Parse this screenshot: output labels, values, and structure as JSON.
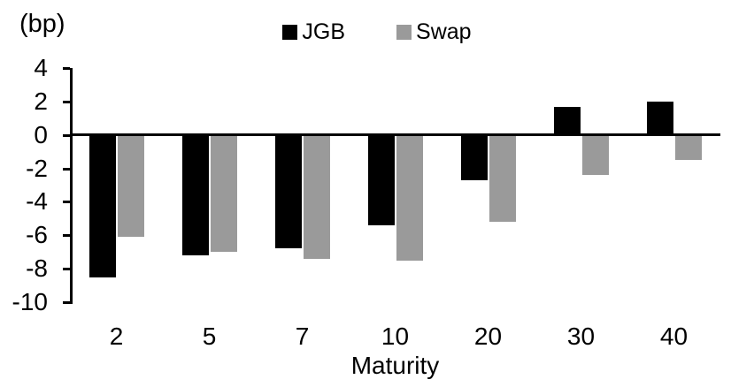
{
  "chart_data": {
    "type": "bar",
    "unit_label": "(bp)",
    "xlabel": "Maturity",
    "categories": [
      "2",
      "5",
      "7",
      "10",
      "20",
      "30",
      "40"
    ],
    "series": [
      {
        "name": "JGB",
        "color": "#000000",
        "values": [
          -8.5,
          -7.2,
          -6.8,
          -5.4,
          -2.7,
          1.7,
          2.0
        ]
      },
      {
        "name": "Swap",
        "color": "#9A9A9A",
        "values": [
          -6.1,
          -7.0,
          -7.4,
          -7.5,
          -5.2,
          -2.4,
          -1.5
        ]
      }
    ],
    "yticks": [
      4,
      2,
      0,
      -2,
      -4,
      -6,
      -8,
      -10
    ],
    "ylim": [
      -10,
      4
    ],
    "legend_position": "top",
    "grid": false,
    "axis_color": "#000000",
    "background": "#FFFFFF"
  }
}
